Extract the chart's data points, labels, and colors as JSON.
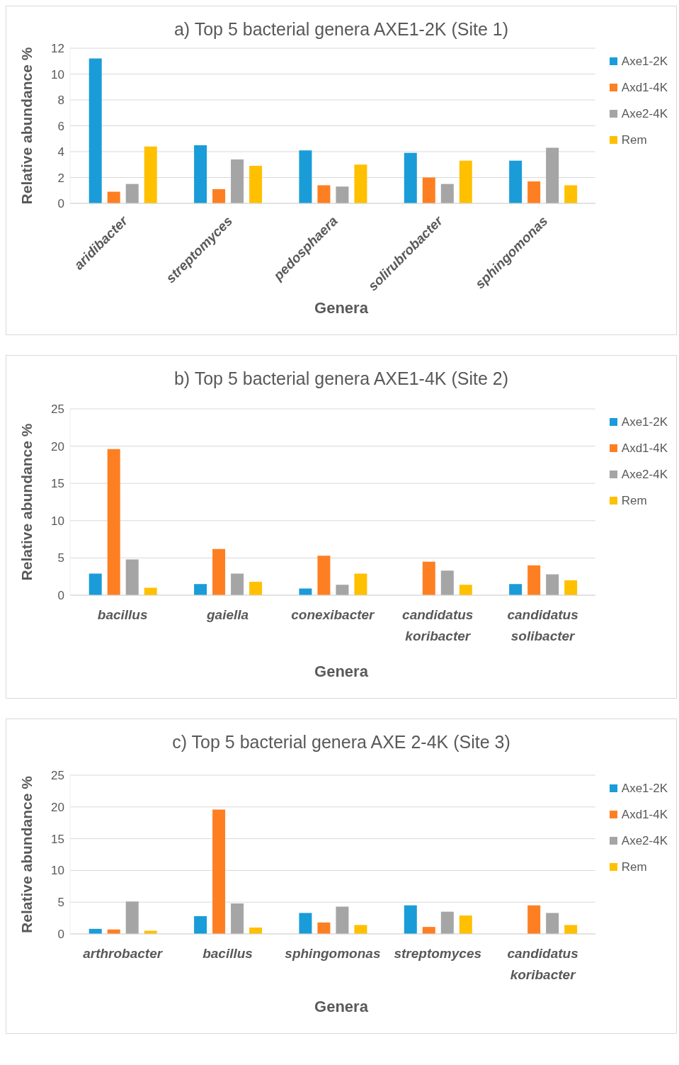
{
  "chart_data": [
    {
      "type": "bar",
      "title": "a) Top 5 bacterial genera AXE1-2K (Site 1)",
      "xlabel": "Genera",
      "ylabel": "Relative abundance %",
      "categories": [
        "aridibacter",
        "streptomyces",
        "pedosphaera",
        "solirubrobacter",
        "sphingomonas"
      ],
      "series": [
        {
          "name": "Axe1-2K",
          "color": "#1a9cd8",
          "values": [
            11.2,
            4.5,
            4.1,
            3.9,
            3.3
          ]
        },
        {
          "name": "Axd1-4K",
          "color": "#fe7f22",
          "values": [
            0.9,
            1.1,
            1.4,
            2.0,
            1.7
          ]
        },
        {
          "name": "Axe2-4K",
          "color": "#a5a5a5",
          "values": [
            1.5,
            3.4,
            1.3,
            1.5,
            4.3
          ]
        },
        {
          "name": "Rem",
          "color": "#ffc000",
          "values": [
            4.4,
            2.9,
            3.0,
            3.3,
            1.4
          ]
        }
      ],
      "ylim": [
        0,
        12
      ],
      "yticks": [
        0,
        2,
        4,
        6,
        8,
        10,
        12
      ],
      "grid": "y",
      "legend": "top right"
    },
    {
      "type": "bar",
      "title": "b) Top 5 bacterial genera AXE1-4K (Site 2)",
      "xlabel": "Genera",
      "ylabel": "Relative abundance %",
      "categories": [
        "bacillus",
        "gaiella",
        "conexibacter",
        "candidatus koribacter",
        "candidatus solibacter"
      ],
      "series": [
        {
          "name": "Axe1-2K",
          "color": "#1a9cd8",
          "values": [
            2.9,
            1.5,
            0.9,
            0,
            1.5
          ]
        },
        {
          "name": "Axd1-4K",
          "color": "#fe7f22",
          "values": [
            19.6,
            6.2,
            5.3,
            4.5,
            4.0
          ]
        },
        {
          "name": "Axe2-4K",
          "color": "#a5a5a5",
          "values": [
            4.8,
            2.9,
            1.4,
            3.3,
            2.8
          ]
        },
        {
          "name": "Rem",
          "color": "#ffc000",
          "values": [
            1.0,
            1.8,
            2.9,
            1.4,
            2.0
          ]
        }
      ],
      "ylim": [
        0,
        25
      ],
      "yticks": [
        0,
        5,
        10,
        15,
        20,
        25
      ],
      "grid": "y",
      "legend": "top right"
    },
    {
      "type": "bar",
      "title": "c) Top 5 bacterial genera AXE 2-4K (Site 3)",
      "xlabel": "Genera",
      "ylabel": "Relative abundance %",
      "categories": [
        "arthrobacter",
        "bacillus",
        "sphingomonas",
        "streptomyces",
        "candidatus koribacter"
      ],
      "series": [
        {
          "name": "Axe1-2K",
          "color": "#1a9cd8",
          "values": [
            0.8,
            2.8,
            3.3,
            4.5,
            0
          ]
        },
        {
          "name": "Axd1-4K",
          "color": "#fe7f22",
          "values": [
            0.7,
            19.6,
            1.8,
            1.1,
            4.5
          ]
        },
        {
          "name": "Axe2-4K",
          "color": "#a5a5a5",
          "values": [
            5.1,
            4.8,
            4.3,
            3.5,
            3.3
          ]
        },
        {
          "name": "Rem",
          "color": "#ffc000",
          "values": [
            0.5,
            1.0,
            1.4,
            2.9,
            1.4
          ]
        }
      ],
      "ylim": [
        0,
        25
      ],
      "yticks": [
        0,
        5,
        10,
        15,
        20,
        25
      ],
      "grid": "y",
      "legend": "top right"
    }
  ]
}
